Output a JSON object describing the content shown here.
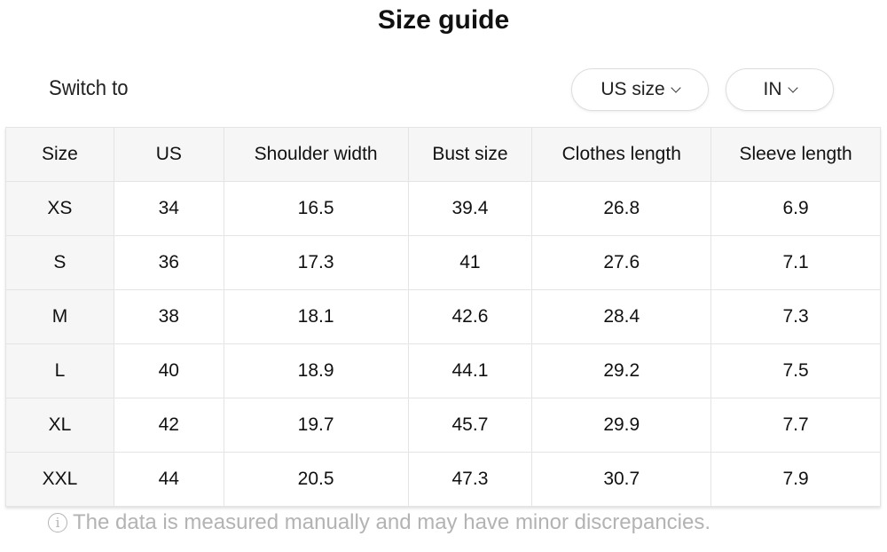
{
  "title": "Size guide",
  "switch_label": "Switch to",
  "size_system": {
    "label": "US size",
    "icon": "chevron-down-icon"
  },
  "unit": {
    "label": "IN",
    "icon": "chevron-down-icon"
  },
  "table": {
    "headers": [
      "Size",
      "US",
      "Shoulder width",
      "Bust size",
      "Clothes length",
      "Sleeve length"
    ],
    "rows": [
      [
        "XS",
        "34",
        "16.5",
        "39.4",
        "26.8",
        "6.9"
      ],
      [
        "S",
        "36",
        "17.3",
        "41",
        "27.6",
        "7.1"
      ],
      [
        "M",
        "38",
        "18.1",
        "42.6",
        "28.4",
        "7.3"
      ],
      [
        "L",
        "40",
        "18.9",
        "44.1",
        "29.2",
        "7.5"
      ],
      [
        "XL",
        "42",
        "19.7",
        "45.7",
        "29.9",
        "7.7"
      ],
      [
        "XXL",
        "44",
        "20.5",
        "47.3",
        "30.7",
        "7.9"
      ]
    ]
  },
  "note": {
    "icon": "info-icon",
    "icon_glyph": "i",
    "text": "The data is measured manually and may have minor discrepancies."
  }
}
